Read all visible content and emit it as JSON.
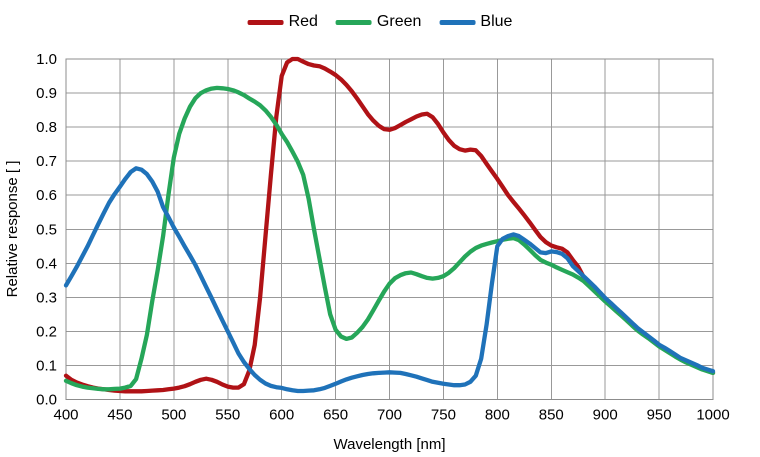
{
  "styles": {
    "background": "#FFFFFF",
    "grid_color": "#999999",
    "frame_color": "#8C8C8C",
    "text_color": "#000000"
  },
  "chart_data": {
    "type": "line",
    "title": "",
    "xlabel": "Wavelength [nm]",
    "ylabel": "Relative response [ ]",
    "xlim": [
      400,
      1000
    ],
    "ylim": [
      0.0,
      1.0
    ],
    "grid": true,
    "legend_position": "top-center",
    "x_ticks": [
      400,
      450,
      500,
      550,
      600,
      650,
      700,
      750,
      800,
      850,
      900,
      950,
      1000
    ],
    "y_ticks": [
      "0.0",
      "0.1",
      "0.2",
      "0.3",
      "0.4",
      "0.5",
      "0.6",
      "0.7",
      "0.8",
      "0.9",
      "1.0"
    ],
    "x": [
      400,
      405,
      410,
      415,
      420,
      425,
      430,
      435,
      440,
      445,
      450,
      455,
      460,
      465,
      470,
      475,
      480,
      485,
      490,
      495,
      500,
      505,
      510,
      515,
      520,
      525,
      530,
      535,
      540,
      545,
      550,
      555,
      560,
      565,
      570,
      575,
      580,
      585,
      590,
      595,
      600,
      605,
      610,
      615,
      620,
      625,
      630,
      635,
      640,
      645,
      650,
      655,
      660,
      665,
      670,
      675,
      680,
      685,
      690,
      695,
      700,
      705,
      710,
      715,
      720,
      725,
      730,
      735,
      740,
      745,
      750,
      755,
      760,
      765,
      770,
      775,
      780,
      785,
      790,
      795,
      800,
      805,
      810,
      815,
      820,
      825,
      830,
      835,
      840,
      845,
      850,
      855,
      860,
      865,
      870,
      875,
      880,
      885,
      890,
      895,
      900,
      905,
      910,
      915,
      920,
      925,
      930,
      935,
      940,
      945,
      950,
      955,
      960,
      965,
      970,
      975,
      980,
      985,
      990,
      995,
      1000
    ],
    "series": [
      {
        "name": "Red",
        "color": "#B01216",
        "values": [
          0.07,
          0.058,
          0.05,
          0.044,
          0.039,
          0.035,
          0.032,
          0.03,
          0.028,
          0.026,
          0.025,
          0.024,
          0.024,
          0.024,
          0.024,
          0.025,
          0.026,
          0.027,
          0.028,
          0.03,
          0.032,
          0.035,
          0.039,
          0.045,
          0.052,
          0.058,
          0.061,
          0.058,
          0.052,
          0.044,
          0.038,
          0.035,
          0.035,
          0.045,
          0.085,
          0.16,
          0.3,
          0.48,
          0.66,
          0.83,
          0.95,
          0.99,
          1.0,
          1.0,
          0.992,
          0.985,
          0.981,
          0.979,
          0.972,
          0.963,
          0.953,
          0.94,
          0.924,
          0.905,
          0.884,
          0.861,
          0.838,
          0.819,
          0.804,
          0.794,
          0.792,
          0.797,
          0.806,
          0.815,
          0.823,
          0.831,
          0.837,
          0.839,
          0.829,
          0.809,
          0.784,
          0.762,
          0.745,
          0.735,
          0.731,
          0.734,
          0.732,
          0.715,
          0.692,
          0.67,
          0.648,
          0.624,
          0.6,
          0.58,
          0.561,
          0.541,
          0.52,
          0.498,
          0.477,
          0.462,
          0.452,
          0.447,
          0.443,
          0.432,
          0.41,
          0.39,
          0.36,
          0.345,
          0.329,
          0.312,
          0.295,
          0.28,
          0.265,
          0.251,
          0.237,
          0.222,
          0.207,
          0.195,
          0.183,
          0.17,
          0.158,
          0.148,
          0.139,
          0.129,
          0.12,
          0.112,
          0.105,
          0.097,
          0.09,
          0.084,
          0.078
        ]
      },
      {
        "name": "Green",
        "color": "#26A659",
        "values": [
          0.055,
          0.048,
          0.042,
          0.038,
          0.035,
          0.033,
          0.031,
          0.03,
          0.03,
          0.031,
          0.032,
          0.035,
          0.04,
          0.06,
          0.12,
          0.19,
          0.29,
          0.38,
          0.48,
          0.6,
          0.71,
          0.78,
          0.825,
          0.86,
          0.885,
          0.9,
          0.908,
          0.913,
          0.915,
          0.914,
          0.912,
          0.908,
          0.902,
          0.894,
          0.884,
          0.875,
          0.864,
          0.849,
          0.83,
          0.807,
          0.78,
          0.756,
          0.728,
          0.698,
          0.66,
          0.59,
          0.5,
          0.415,
          0.33,
          0.25,
          0.205,
          0.185,
          0.178,
          0.182,
          0.196,
          0.213,
          0.235,
          0.262,
          0.29,
          0.317,
          0.34,
          0.356,
          0.365,
          0.371,
          0.373,
          0.368,
          0.362,
          0.357,
          0.355,
          0.357,
          0.362,
          0.372,
          0.386,
          0.403,
          0.42,
          0.434,
          0.445,
          0.452,
          0.457,
          0.461,
          0.465,
          0.469,
          0.472,
          0.474,
          0.468,
          0.455,
          0.44,
          0.424,
          0.41,
          0.402,
          0.396,
          0.388,
          0.381,
          0.374,
          0.367,
          0.358,
          0.348,
          0.333,
          0.318,
          0.303,
          0.288,
          0.274,
          0.26,
          0.246,
          0.232,
          0.217,
          0.203,
          0.191,
          0.18,
          0.168,
          0.156,
          0.146,
          0.136,
          0.126,
          0.117,
          0.109,
          0.102,
          0.095,
          0.088,
          0.083,
          0.078
        ]
      },
      {
        "name": "Blue",
        "color": "#1F72B9",
        "values": [
          0.335,
          0.362,
          0.39,
          0.42,
          0.45,
          0.483,
          0.515,
          0.547,
          0.578,
          0.603,
          0.625,
          0.648,
          0.668,
          0.679,
          0.675,
          0.662,
          0.64,
          0.61,
          0.565,
          0.536,
          0.505,
          0.478,
          0.45,
          0.423,
          0.395,
          0.363,
          0.33,
          0.298,
          0.265,
          0.232,
          0.2,
          0.168,
          0.135,
          0.11,
          0.09,
          0.072,
          0.058,
          0.047,
          0.04,
          0.036,
          0.034,
          0.03,
          0.027,
          0.025,
          0.025,
          0.026,
          0.027,
          0.03,
          0.034,
          0.04,
          0.046,
          0.053,
          0.059,
          0.064,
          0.068,
          0.072,
          0.075,
          0.077,
          0.078,
          0.079,
          0.08,
          0.079,
          0.078,
          0.075,
          0.071,
          0.067,
          0.062,
          0.057,
          0.052,
          0.049,
          0.046,
          0.044,
          0.042,
          0.042,
          0.044,
          0.052,
          0.07,
          0.12,
          0.22,
          0.34,
          0.45,
          0.472,
          0.48,
          0.485,
          0.48,
          0.469,
          0.458,
          0.445,
          0.432,
          0.43,
          0.435,
          0.433,
          0.428,
          0.415,
          0.392,
          0.377,
          0.362,
          0.347,
          0.332,
          0.315,
          0.298,
          0.284,
          0.269,
          0.255,
          0.24,
          0.225,
          0.21,
          0.198,
          0.186,
          0.174,
          0.161,
          0.152,
          0.142,
          0.132,
          0.122,
          0.115,
          0.108,
          0.101,
          0.093,
          0.088,
          0.083
        ]
      }
    ]
  }
}
